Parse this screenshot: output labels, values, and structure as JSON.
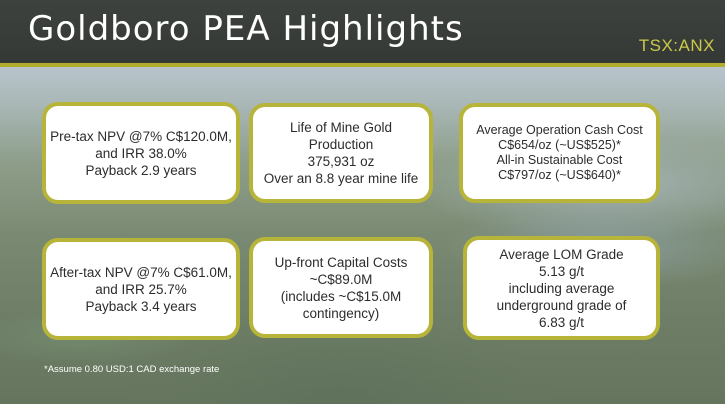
{
  "header": {
    "title": "Goldboro PEA Highlights",
    "ticker": "TSX:ANX"
  },
  "boxes": [
    {
      "lines": [
        "Pre-tax NPV @7% C$120.0M,",
        "and IRR 38.0%",
        "Payback 2.9 years"
      ]
    },
    {
      "lines": [
        "Life of Mine Gold",
        "Production",
        "375,931 oz",
        "Over an 8.8 year mine life"
      ]
    },
    {
      "lines": [
        "Average Operation Cash Cost",
        "C$654/oz (~US$525)*",
        "All-in Sustainable Cost",
        "C$797/oz (~US$640)*"
      ]
    },
    {
      "lines": [
        "After-tax NPV @7% C$61.0M,",
        "and IRR 25.7%",
        "Payback 3.4 years"
      ]
    },
    {
      "lines": [
        "Up-front Capital Costs",
        "~C$89.0M",
        "(includes ~C$15.0M",
        "contingency)"
      ]
    },
    {
      "lines": [
        "Average LOM Grade",
        "5.13 g/t",
        "including average",
        "underground grade of",
        "6.83 g/t"
      ]
    }
  ],
  "footnote": "*Assume 0.80 USD:1 CAD exchange rate",
  "colors": {
    "header_bg": "#3e423e",
    "accent_gold": "#b7b43a",
    "ticker": "#c9c94a"
  }
}
